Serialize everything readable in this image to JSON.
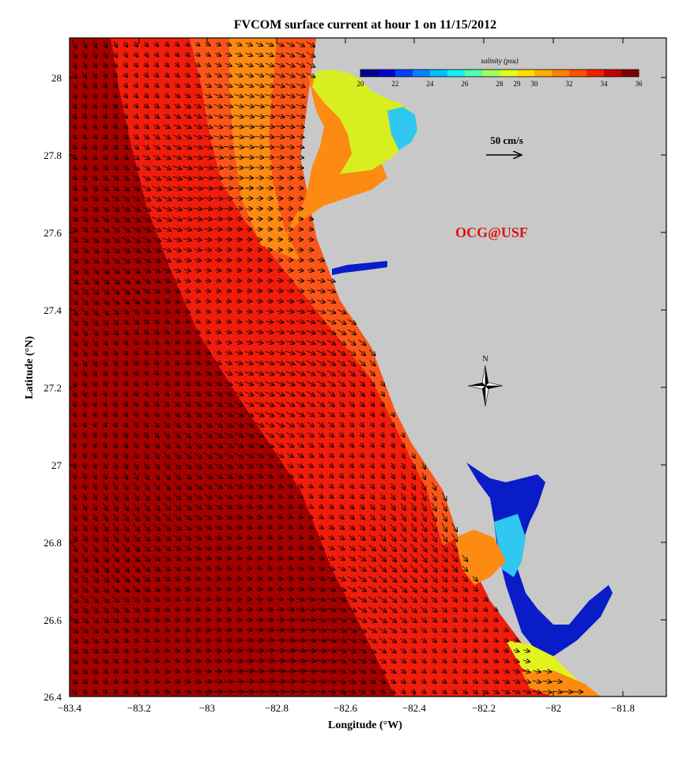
{
  "title": "FVCOM surface current at hour 1 on 11/15/2012",
  "xlabel": "Longitude (°W)",
  "ylabel": "Latitude (°N)",
  "x_ticks": [
    "−83.4",
    "−83.2",
    "−83",
    "−82.8",
    "−82.6",
    "−82.4",
    "−82.2",
    "−82",
    "−81.8"
  ],
  "y_ticks": [
    "28",
    "27.8",
    "27.6",
    "27.4",
    "27.2",
    "27",
    "26.8",
    "26.6",
    "26.4"
  ],
  "colorbar": {
    "title": "salinity (psu)",
    "ticks": [
      "20",
      "22",
      "24",
      "26",
      "28",
      "29",
      "30",
      "32",
      "34",
      "36"
    ],
    "colors": [
      "#00008f",
      "#0000cf",
      "#0040ff",
      "#0080ff",
      "#00c0ff",
      "#10f0f0",
      "#50ff b0",
      "#a0ff60",
      "#e0ff20",
      "#ffe000",
      "#ffb000",
      "#ff8000",
      "#ff5000",
      "#f02000",
      "#c00000",
      "#800000"
    ]
  },
  "scale_label": "50 cm/s",
  "watermark": "OCG@USF",
  "compass_label": "N",
  "colors": {
    "deep": "#a40000",
    "outer": "#cc0000",
    "mid": "#f01c0c",
    "inner": "#fb5618",
    "orange": "#fd8a12",
    "yellow": "#e2f21e",
    "fresh": "#0a1cc8",
    "land": "#c8c8c8",
    "brand": "#e01010"
  },
  "chart_data": {
    "type": "heatmap",
    "x_range": [
      -83.4,
      -81.7
    ],
    "y_range": [
      26.4,
      28.1
    ],
    "variable": "salinity (psu)",
    "value_range": [
      20,
      36
    ],
    "vectors": "surface current",
    "vector_scale": "50 cm/s"
  }
}
